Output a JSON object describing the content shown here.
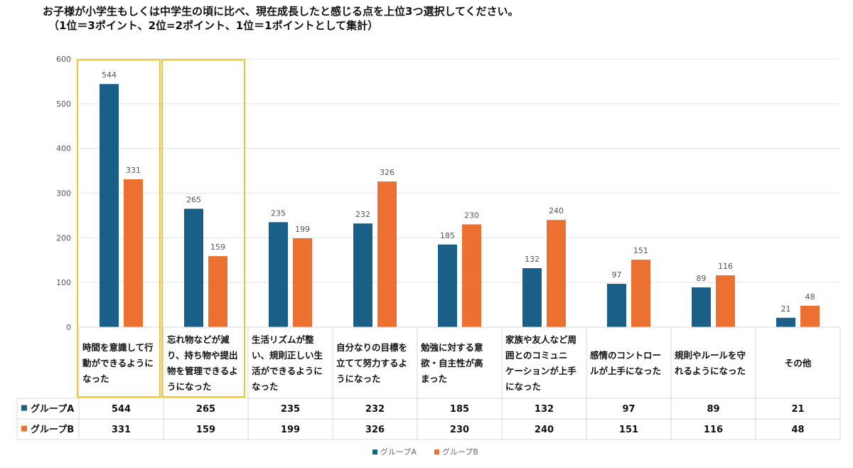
{
  "title": {
    "line1": "お子様が小学生もしくは中学生の頃に比べ、現在成長したと感じる点を上位3つ選択してください。",
    "line2": "（1位＝3ポイント、2位=2ポイント、1位＝1ポイントとして集計）"
  },
  "colors": {
    "series_a": "#1a5f87",
    "series_b": "#ec7131",
    "highlight": "#f4c430",
    "grid": "#e3e3e3",
    "table_border": "#d8d8d8"
  },
  "chart_data": {
    "type": "bar",
    "title": "お子様が小学生もしくは中学生の頃に比べ、現在成長したと感じる点を上位3つ選択してください。",
    "ylim": [
      0,
      600
    ],
    "yticks": [
      0,
      100,
      200,
      300,
      400,
      500,
      600
    ],
    "categories": [
      [
        "時間を意識して行",
        "動ができるように",
        "なった"
      ],
      [
        "忘れ物などが減",
        "り、持ち物や提出",
        "物を管理できるよ",
        "うになった"
      ],
      [
        "生活リズムが整",
        "い、規則正しい生",
        "活ができるように",
        "なった"
      ],
      [
        "自分なりの目標を",
        "立てて努力するよ",
        "うになった"
      ],
      [
        "勉強に対する意",
        "欲・自主性が高",
        "まった"
      ],
      [
        "家族や友人など周",
        "囲とのコミュニ",
        "ケーションが上手",
        "になった"
      ],
      [
        "感情のコントロー",
        "ルが上手になった"
      ],
      [
        "規則やルールを守",
        "れるようになった"
      ],
      [
        "その他"
      ]
    ],
    "series": [
      {
        "name": "グループA",
        "values": [
          544,
          265,
          235,
          232,
          185,
          132,
          97,
          89,
          21
        ]
      },
      {
        "name": "グループB",
        "values": [
          331,
          159,
          199,
          326,
          230,
          240,
          151,
          116,
          48
        ]
      }
    ],
    "highlighted_categories": [
      0,
      1
    ],
    "legend": "bottom-center"
  }
}
